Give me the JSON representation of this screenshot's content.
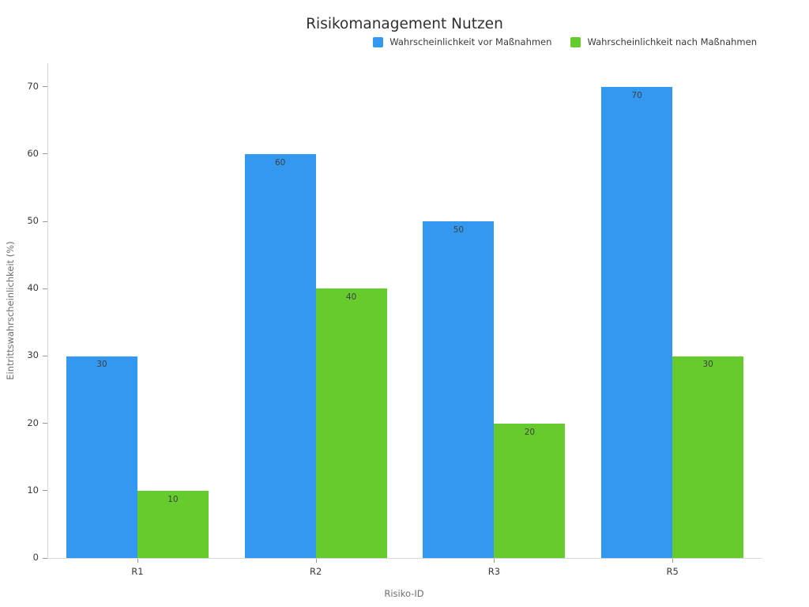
{
  "chart_data": {
    "type": "bar",
    "title": "Risikomanagement Nutzen",
    "xlabel": "Risiko-ID",
    "ylabel": "Eintrittswahrscheinlichkeit (%)",
    "categories": [
      "R1",
      "R2",
      "R3",
      "R5"
    ],
    "series": [
      {
        "name": "Wahrscheinlichkeit vor Maßnahmen",
        "color": "#3399F0",
        "values": [
          30,
          60,
          50,
          70
        ]
      },
      {
        "name": "Wahrscheinlichkeit nach Maßnahmen",
        "color": "#66CC2E",
        "values": [
          10,
          40,
          20,
          30
        ]
      }
    ],
    "yticks": [
      0,
      10,
      20,
      30,
      40,
      50,
      60,
      70
    ],
    "ylim": [
      0,
      73.5
    ],
    "bar_value_labels_shown": true,
    "grid": false,
    "legend_position": "top-right",
    "colors": {
      "title": "#303030",
      "tick_label": "#3a3a3a",
      "axis_title": "#6e6e6e",
      "axis_line": "#d9d9d9",
      "tick": "#999999",
      "value_label": "#404040",
      "background": "#ffffff"
    }
  }
}
